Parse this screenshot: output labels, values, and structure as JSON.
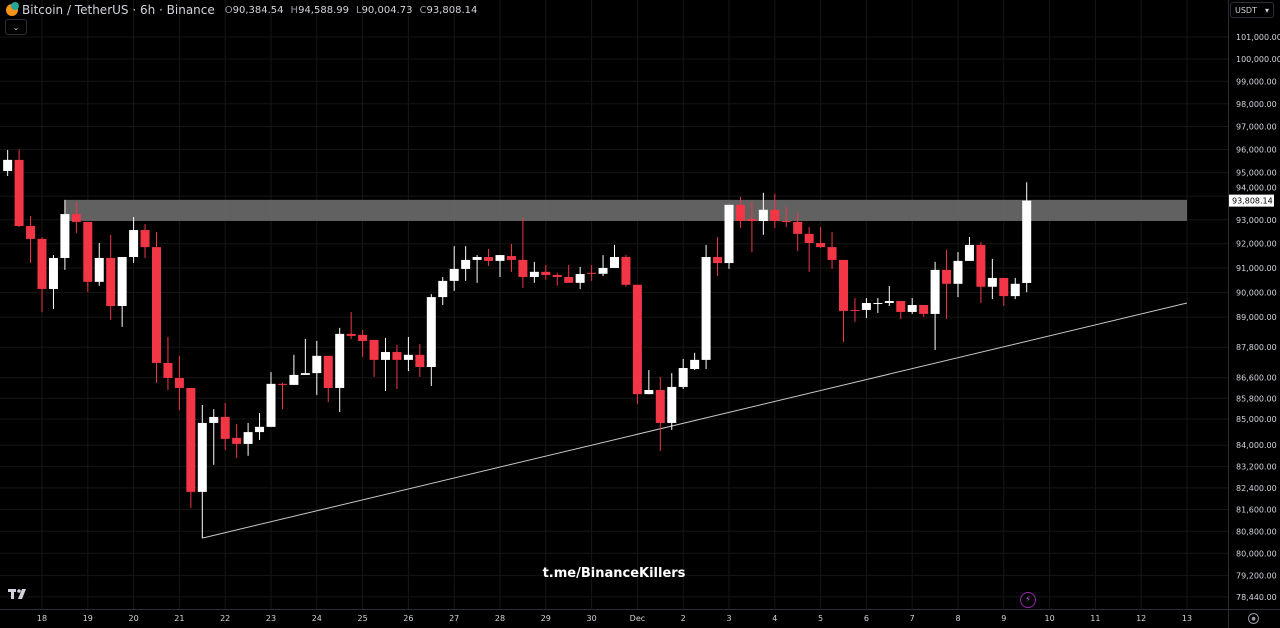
{
  "header": {
    "symbol": "Bitcoin / TetherUS · 6h · Binance",
    "open_label": "O",
    "open": "90,384.54",
    "high_label": "H",
    "high": "94,588.99",
    "low_label": "L",
    "low": "90,004.73",
    "close_label": "C",
    "close": "93,808.14",
    "collapse_icon": "chevron-down-icon"
  },
  "currency_selector": "USDT",
  "watermark": "t.me/BinanceKillers",
  "logo": "TV",
  "colors": {
    "background": "#000000",
    "up": "#ffffff",
    "down": "#f23645",
    "zone": "#6b6b6b",
    "trendline": "#c8c8c8",
    "grid": "#161616"
  },
  "chart_data": {
    "type": "candlestick",
    "interval": "6h",
    "yscale": "log",
    "ylim": [
      78100,
      102600
    ],
    "grid": true,
    "y_ticks": [
      "101,000.00",
      "100,000.00",
      "99,000.00",
      "98,000.00",
      "97,000.00",
      "96,000.00",
      "95,000.00",
      "94,000.00",
      "93,000.00",
      "92,000.00",
      "91,000.00",
      "90,000.00",
      "89,000.00",
      "87,800.00",
      "86,600.00",
      "85,800.00",
      "85,000.00",
      "84,000.00",
      "83,200.00",
      "82,400.00",
      "81,600.00",
      "80,800.00",
      "80,000.00",
      "79,200.00",
      "78,440.00"
    ],
    "x_ticks": [
      "18",
      "19",
      "20",
      "21",
      "22",
      "23",
      "24",
      "25",
      "26",
      "27",
      "28",
      "29",
      "30",
      "Dec",
      "2",
      "3",
      "4",
      "5",
      "6",
      "7",
      "8",
      "9",
      "10",
      "11",
      "12",
      "13"
    ],
    "last_price_label": "93,808.14",
    "columns": [
      "time",
      "open",
      "high",
      "low",
      "close"
    ],
    "candles": [
      [
        "Nov 17 06:00",
        95070,
        95980,
        94860,
        95550
      ],
      [
        "Nov 17 12:00",
        95550,
        96000,
        92700,
        92740
      ],
      [
        "Nov 17 18:00",
        92740,
        93160,
        91210,
        92200
      ],
      [
        "Nov 18 00:00",
        92200,
        92280,
        89200,
        90140
      ],
      [
        "Nov 18 06:00",
        90140,
        91530,
        89330,
        91410
      ],
      [
        "Nov 18 12:00",
        91410,
        93840,
        90920,
        93240
      ],
      [
        "Nov 18 18:00",
        93240,
        93760,
        92450,
        92910
      ],
      [
        "Nov 19 00:00",
        92910,
        92910,
        90020,
        90430
      ],
      [
        "Nov 19 06:00",
        90430,
        92030,
        90270,
        91410
      ],
      [
        "Nov 19 12:00",
        91410,
        92370,
        88890,
        89450
      ],
      [
        "Nov 19 18:00",
        89450,
        91450,
        88610,
        91450
      ],
      [
        "Nov 20 00:00",
        91450,
        93120,
        91210,
        92570
      ],
      [
        "Nov 20 06:00",
        92570,
        92820,
        91410,
        91860
      ],
      [
        "Nov 20 12:00",
        91860,
        92490,
        86400,
        87180
      ],
      [
        "Nov 20 18:00",
        87180,
        88210,
        86120,
        86590
      ],
      [
        "Nov 21 00:00",
        86590,
        87460,
        85340,
        86200
      ],
      [
        "Nov 21 06:00",
        86200,
        86200,
        81650,
        82250
      ],
      [
        "Nov 21 12:00",
        82250,
        85540,
        80550,
        84850
      ],
      [
        "Nov 21 18:00",
        84850,
        85380,
        83260,
        85080
      ],
      [
        "Nov 22 00:00",
        85080,
        85620,
        83820,
        84240
      ],
      [
        "Nov 22 06:00",
        84280,
        84810,
        83520,
        84050
      ],
      [
        "Nov 22 12:00",
        84050,
        84850,
        83600,
        84500
      ],
      [
        "Nov 22 18:00",
        84500,
        85230,
        84200,
        84700
      ],
      [
        "Nov 23 00:00",
        84700,
        86820,
        84700,
        86360
      ],
      [
        "Nov 23 06:00",
        86360,
        86400,
        85380,
        86320
      ],
      [
        "Nov 23 12:00",
        86320,
        87500,
        86320,
        86710
      ],
      [
        "Nov 23 18:00",
        86710,
        88130,
        86710,
        86780
      ],
      [
        "Nov 24 00:00",
        86780,
        88050,
        85930,
        87460
      ],
      [
        "Nov 24 06:00",
        87460,
        87460,
        85650,
        86200
      ],
      [
        "Nov 24 12:00",
        86200,
        88570,
        85270,
        88330
      ],
      [
        "Nov 24 18:00",
        88330,
        89210,
        88130,
        88250
      ],
      [
        "Nov 25 00:00",
        88290,
        88490,
        87420,
        88050
      ],
      [
        "Nov 25 06:00",
        88090,
        88090,
        86630,
        87300
      ],
      [
        "Nov 25 12:00",
        87300,
        88170,
        86080,
        87610
      ],
      [
        "Nov 25 18:00",
        87610,
        87890,
        86160,
        87300
      ],
      [
        "Nov 26 00:00",
        87300,
        88210,
        86860,
        87500
      ],
      [
        "Nov 26 06:00",
        87500,
        87930,
        86630,
        87020
      ],
      [
        "Nov 26 12:00",
        87020,
        89930,
        86280,
        89810
      ],
      [
        "Nov 26 18:00",
        89810,
        90630,
        89490,
        90470
      ],
      [
        "Nov 27 00:00",
        90470,
        91900,
        90060,
        90960
      ],
      [
        "Nov 27 06:00",
        90960,
        91900,
        90470,
        91330
      ],
      [
        "Nov 27 12:00",
        91330,
        91530,
        90390,
        91450
      ],
      [
        "Nov 27 18:00",
        91450,
        91780,
        91080,
        91290
      ],
      [
        "Nov 28 00:00",
        91290,
        91530,
        90630,
        91530
      ],
      [
        "Nov 28 06:00",
        91490,
        91990,
        90840,
        91330
      ],
      [
        "Nov 28 12:00",
        91330,
        93080,
        90180,
        90630
      ],
      [
        "Nov 28 18:00",
        90630,
        91250,
        90390,
        90840
      ],
      [
        "Nov 29 00:00",
        90840,
        91120,
        90510,
        90710
      ],
      [
        "Nov 29 06:00",
        90710,
        90800,
        90270,
        90630
      ],
      [
        "Nov 29 12:00",
        90630,
        91120,
        90390,
        90390
      ],
      [
        "Nov 29 18:00",
        90390,
        91040,
        90140,
        90750
      ],
      [
        "Nov 30 00:00",
        90800,
        91120,
        90470,
        90760
      ],
      [
        "Nov 30 06:00",
        90760,
        91530,
        90670,
        91000
      ],
      [
        "Nov 30 12:00",
        91000,
        91950,
        91000,
        91450
      ],
      [
        "Nov 30 18:00",
        91450,
        91530,
        90230,
        90310
      ],
      [
        "Dec 1 00:00",
        90310,
        90310,
        85580,
        85960
      ],
      [
        "Dec 1 06:00",
        85960,
        86900,
        85960,
        86120
      ],
      [
        "Dec 1 12:00",
        86120,
        86630,
        83780,
        84850
      ],
      [
        "Dec 1 18:00",
        84850,
        86780,
        84580,
        86240
      ],
      [
        "Dec 2 00:00",
        86240,
        87340,
        86160,
        86980
      ],
      [
        "Dec 2 06:00",
        86940,
        87580,
        86900,
        87300
      ],
      [
        "Dec 2 12:00",
        87300,
        91950,
        86940,
        91450
      ],
      [
        "Dec 2 18:00",
        91450,
        92280,
        90670,
        91200
      ],
      [
        "Dec 3 00:00",
        91200,
        93630,
        90960,
        93630
      ],
      [
        "Dec 3 06:00",
        93630,
        93970,
        92660,
        92950
      ],
      [
        "Dec 3 12:00",
        93030,
        93760,
        91650,
        92950
      ],
      [
        "Dec 3 18:00",
        92950,
        94140,
        92370,
        93420
      ],
      [
        "Dec 4 00:00",
        93420,
        94100,
        92660,
        92950
      ],
      [
        "Dec 4 06:00",
        92950,
        93550,
        92700,
        92910
      ],
      [
        "Dec 4 12:00",
        92910,
        93290,
        91700,
        92410
      ],
      [
        "Dec 4 18:00",
        92410,
        92700,
        90840,
        92030
      ],
      [
        "Dec 5 00:00",
        92030,
        92700,
        91820,
        91860
      ],
      [
        "Dec 5 06:00",
        91860,
        92490,
        90960,
        91330
      ],
      [
        "Dec 5 12:00",
        91330,
        91330,
        88010,
        89250
      ],
      [
        "Dec 5 18:00",
        89290,
        89770,
        88810,
        89250
      ],
      [
        "Dec 6 00:00",
        89290,
        89770,
        88970,
        89570
      ],
      [
        "Dec 6 06:00",
        89530,
        89770,
        89170,
        89570
      ],
      [
        "Dec 6 12:00",
        89570,
        90260,
        89450,
        89650
      ],
      [
        "Dec 6 18:00",
        89650,
        89650,
        88930,
        89210
      ],
      [
        "Dec 7 00:00",
        89210,
        89770,
        89130,
        89490
      ],
      [
        "Dec 7 06:00",
        89490,
        89490,
        89010,
        89130
      ],
      [
        "Dec 7 12:00",
        89130,
        91250,
        87690,
        90920
      ],
      [
        "Dec 7 18:00",
        90920,
        91740,
        88930,
        90350
      ],
      [
        "Dec 8 00:00",
        90350,
        91650,
        89810,
        91290
      ],
      [
        "Dec 8 06:00",
        91290,
        92280,
        91290,
        91950
      ],
      [
        "Dec 8 12:00",
        91950,
        92070,
        89570,
        90230
      ],
      [
        "Dec 8 18:00",
        90230,
        91370,
        89730,
        90590
      ],
      [
        "Dec 9 00:00",
        90590,
        90590,
        89450,
        89850
      ],
      [
        "Dec 9 06:00",
        89850,
        90590,
        89730,
        90350
      ],
      [
        "Dec 9 12:00",
        90384.54,
        94588.99,
        90004.73,
        93808.14
      ]
    ],
    "annotations": [
      {
        "type": "zone",
        "from_time": "Nov 18 12:00",
        "to_time": "Dec 13 00:00",
        "top": 93840,
        "bottom": 92950
      },
      {
        "type": "trendline",
        "from": [
          "Nov 21 12:00",
          80550
        ],
        "to": [
          "Dec 13 00:00",
          89570
        ]
      }
    ]
  }
}
